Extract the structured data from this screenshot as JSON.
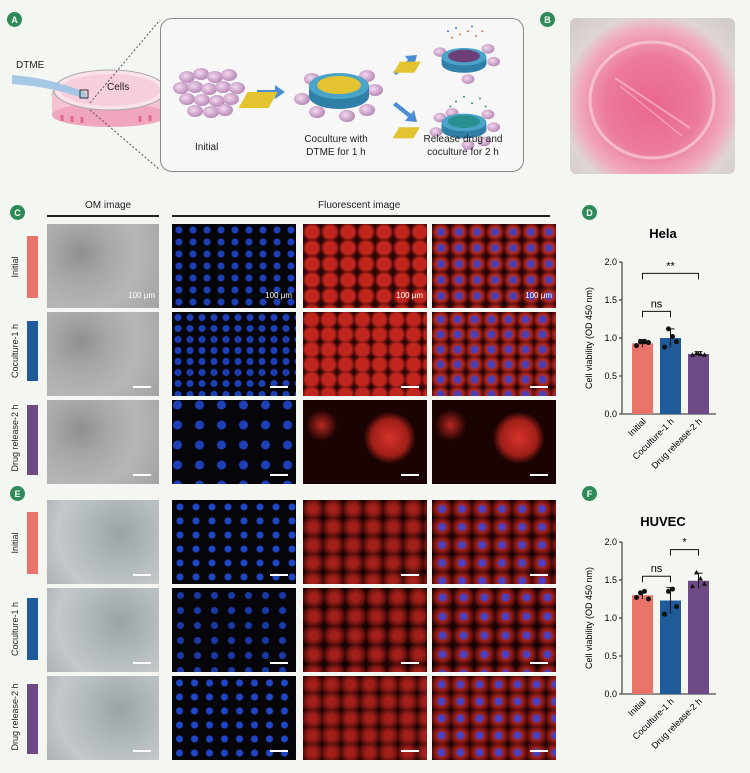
{
  "panels": {
    "A": "A",
    "B": "B",
    "C": "C",
    "D": "D",
    "E": "E",
    "F": "F"
  },
  "schematic": {
    "dtme": "DTME",
    "cells": "Cells",
    "step1": "Initial",
    "step2_l1": "Coculture with",
    "step2_l2": "DTME for 1 h",
    "step3_l1": "Release drug and",
    "step3_l2": "coculture for 2 h"
  },
  "headers": {
    "om": "OM image",
    "fluor": "Fluorescent  image"
  },
  "rows": [
    "Initial",
    "Coculture-1 h",
    "Drug release-2 h"
  ],
  "scalebar": "100 μm",
  "colors": {
    "initial": "#e8746a",
    "coculture": "#1f5b9a",
    "drug": "#6e4a86",
    "badge": "#2e8b57"
  },
  "chart_data": [
    {
      "type": "bar",
      "title": "Hela",
      "ylabel": "Cell viability (OD 450 nm)",
      "ylim": [
        0,
        2.0
      ],
      "yticks": [
        "0.0",
        "0.5",
        "1.0",
        "1.5",
        "2.0"
      ],
      "categories": [
        "Initial",
        "Coculture-1 h",
        "Drug release-2 h"
      ],
      "values": [
        0.93,
        1.0,
        0.79
      ],
      "errors": [
        0.05,
        0.12,
        0.03
      ],
      "points": [
        [
          0.9,
          0.95,
          0.95,
          0.94
        ],
        [
          0.88,
          1.12,
          1.02,
          0.95
        ],
        [
          0.78,
          0.8,
          0.79,
          0.78
        ]
      ],
      "sig": [
        {
          "from": 0,
          "to": 1,
          "label": "ns",
          "level": 1.35
        },
        {
          "from": 0,
          "to": 2,
          "label": "**",
          "level": 1.85
        }
      ]
    },
    {
      "type": "bar",
      "title": "HUVEC",
      "ylabel": "Cell viability (OD 450 nm)",
      "ylim": [
        0,
        2.0
      ],
      "yticks": [
        "0.0",
        "0.5",
        "1.0",
        "1.5",
        "2.0"
      ],
      "categories": [
        "Initial",
        "Coculture-1 h",
        "Drug release-2 h"
      ],
      "values": [
        1.3,
        1.23,
        1.49
      ],
      "errors": [
        0.05,
        0.17,
        0.1
      ],
      "points": [
        [
          1.27,
          1.33,
          1.35,
          1.25
        ],
        [
          1.05,
          1.35,
          1.38,
          1.15
        ],
        [
          1.42,
          1.6,
          1.52,
          1.45
        ]
      ],
      "sig": [
        {
          "from": 0,
          "to": 1,
          "label": "ns",
          "level": 1.55
        },
        {
          "from": 1,
          "to": 2,
          "label": "*",
          "level": 1.9
        }
      ]
    }
  ]
}
